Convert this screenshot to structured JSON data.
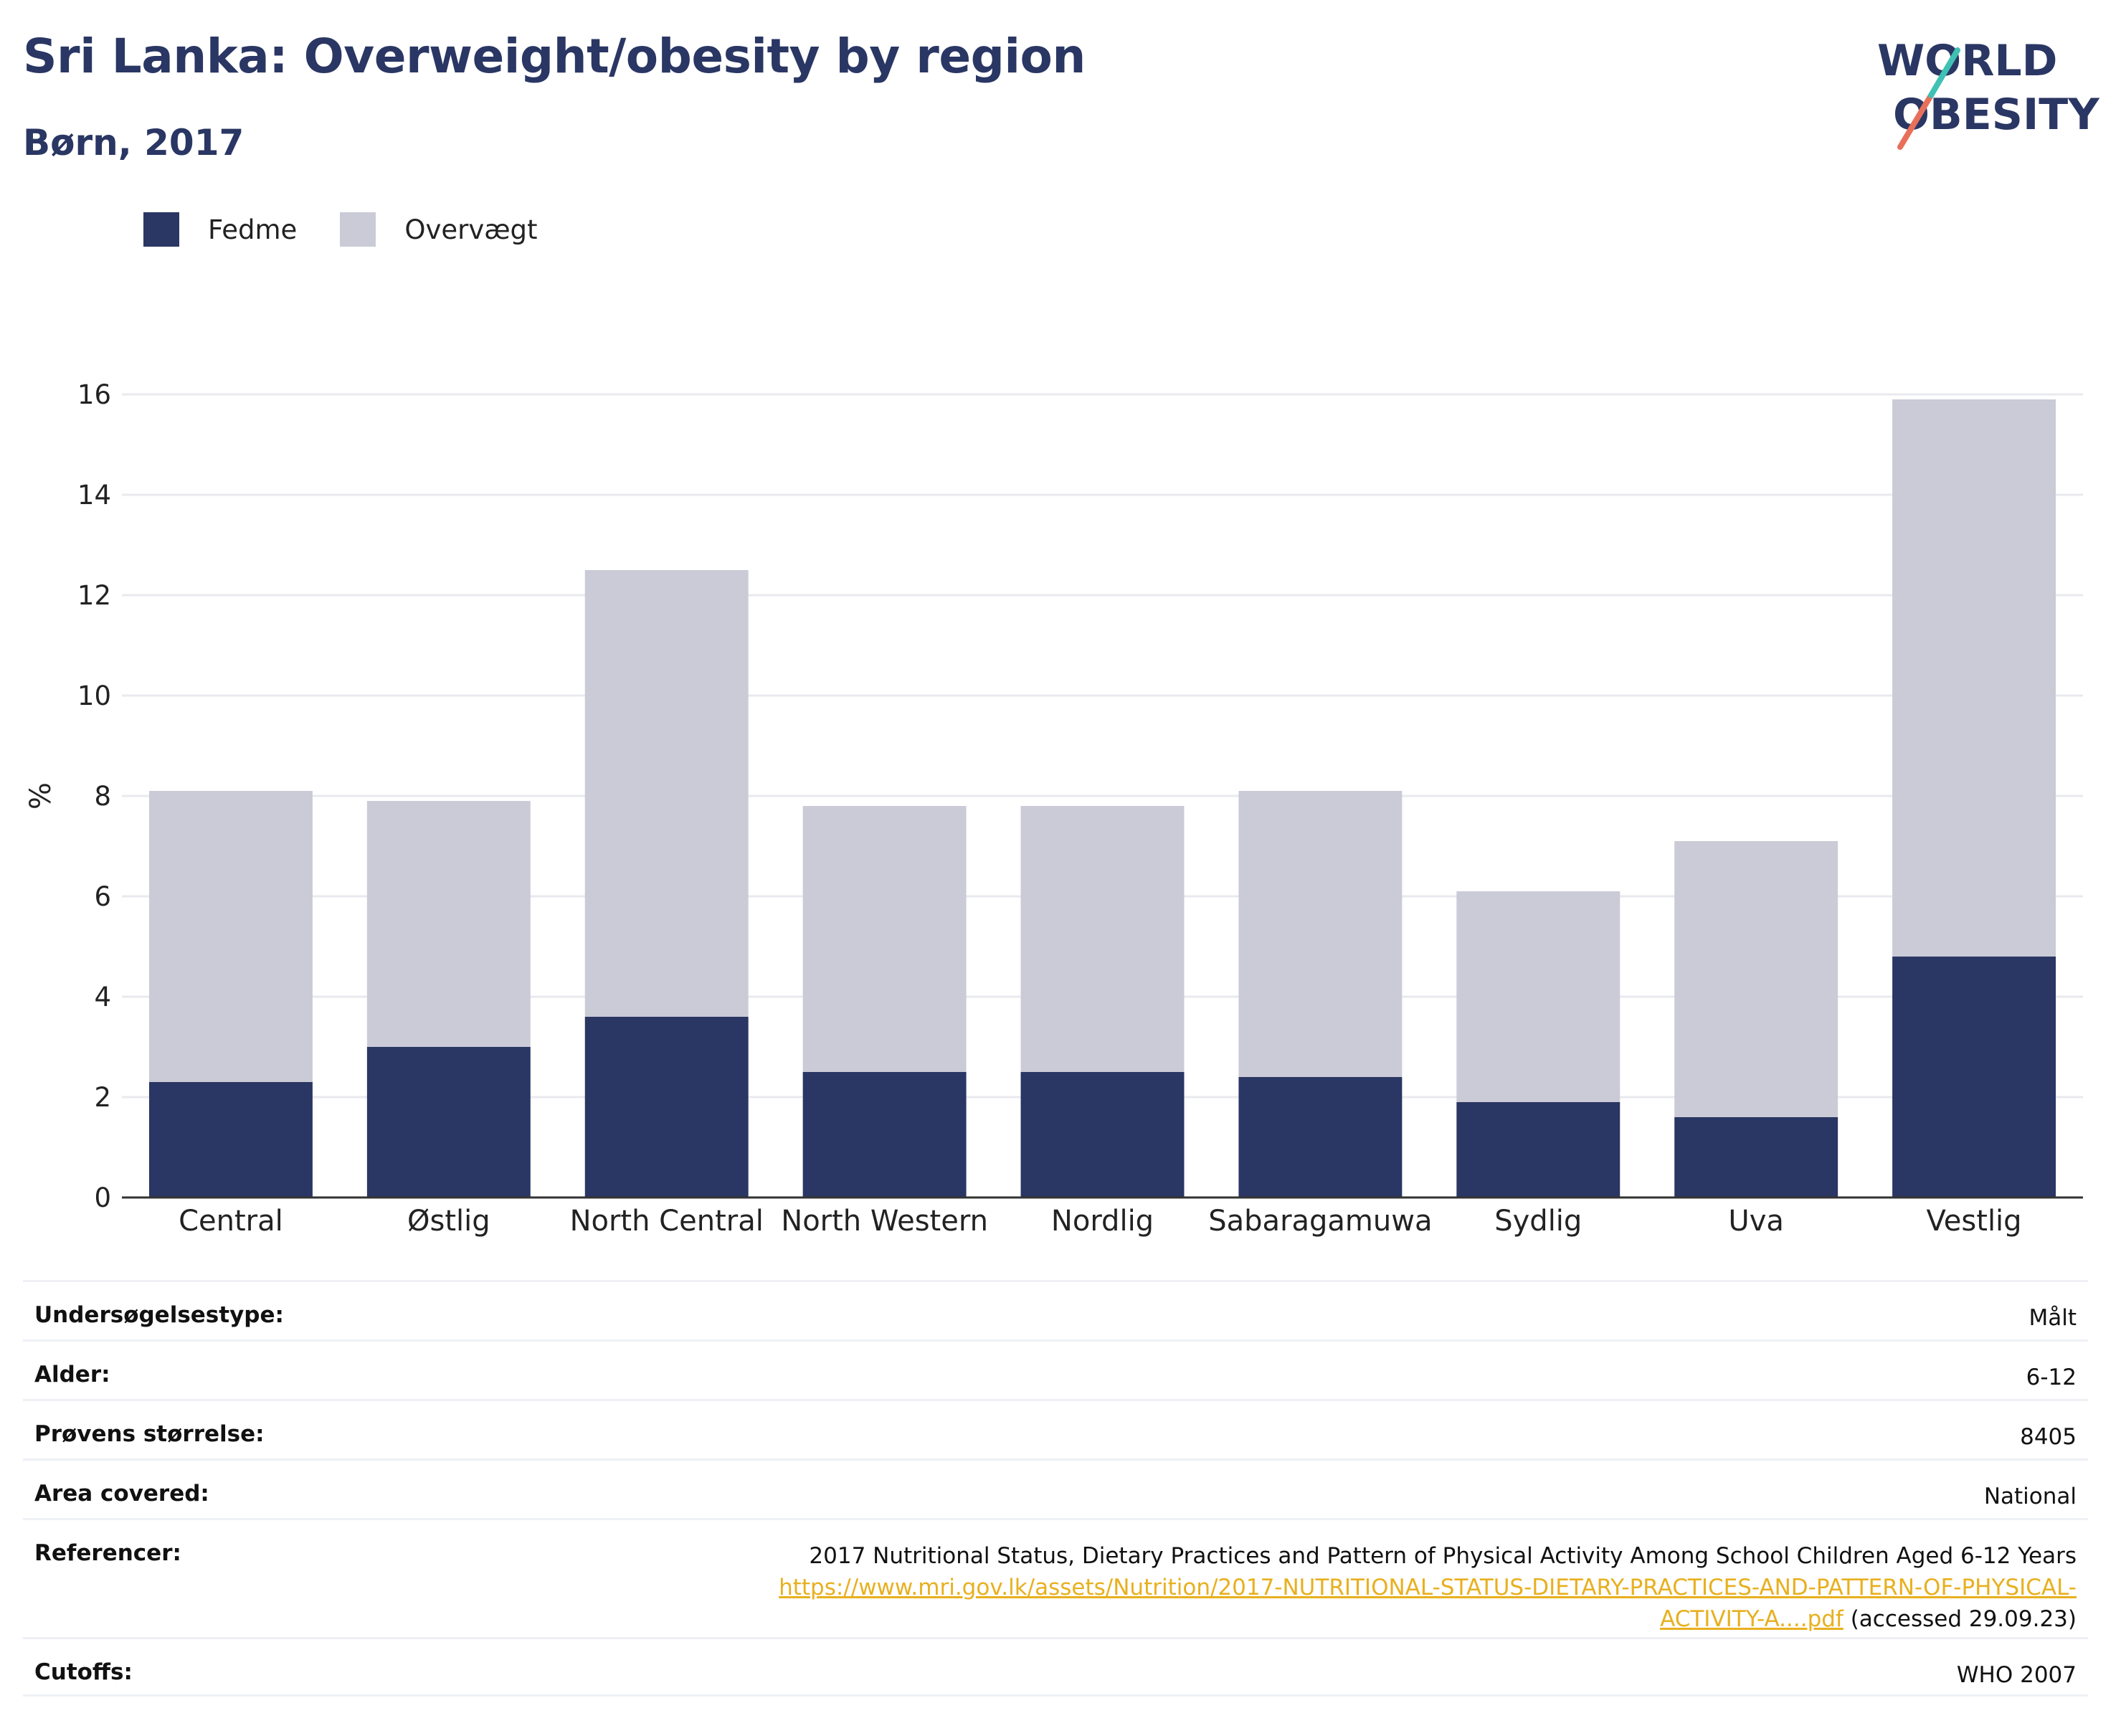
{
  "header": {
    "title": "Sri Lanka: Overweight/obesity by region",
    "subtitle": "Børn, 2017"
  },
  "logo": {
    "line1": "WORLD",
    "line2": "OBESITY"
  },
  "colors": {
    "obesity": "#2a3663",
    "overweight": "#cacbd6",
    "title": "#2a3663",
    "link": "#e8b01f"
  },
  "chart_data": {
    "type": "bar",
    "stacked": true,
    "categories": [
      "Central",
      "Østlig",
      "North Central",
      "North Western",
      "Nordlig",
      "Sabaragamuwa",
      "Sydlig",
      "Uva",
      "Vestlig"
    ],
    "series": [
      {
        "name": "Fedme",
        "values": [
          2.3,
          3.0,
          3.6,
          2.5,
          2.5,
          2.4,
          1.9,
          1.6,
          4.8
        ]
      },
      {
        "name": "Overvægt",
        "values": [
          5.8,
          4.9,
          8.9,
          5.3,
          5.3,
          5.7,
          4.2,
          5.5,
          11.1
        ]
      }
    ],
    "xlabel": "",
    "ylabel": "%",
    "ylim": [
      0,
      16
    ],
    "yticks": [
      0,
      2,
      4,
      6,
      8,
      10,
      12,
      14,
      16
    ],
    "grid": true,
    "legend": "top-left"
  },
  "meta": {
    "survey_type": {
      "label": "Undersøgelsestype:",
      "value": "Målt"
    },
    "age": {
      "label": "Alder:",
      "value": "6-12"
    },
    "sample_size": {
      "label": "Prøvens størrelse:",
      "value": "8405"
    },
    "area": {
      "label": "Area covered:",
      "value": "National"
    },
    "references": {
      "label": "Referencer:",
      "text": "2017 Nutritional Status, Dietary Practices and Pattern of Physical Activity Among School Children Aged 6-12 Years",
      "link_line1": "https://www.mri.gov.lk/assets/Nutrition/2017-NUTRITIONAL-STATUS-DIETARY-PRACTICES-AND-PATTERN-OF-PHYSICAL-",
      "link_line2": "ACTIVITY-A....pdf",
      "accessed": " (accessed 29.09.23)"
    },
    "cutoffs": {
      "label": "Cutoffs:",
      "value": "WHO 2007"
    }
  }
}
